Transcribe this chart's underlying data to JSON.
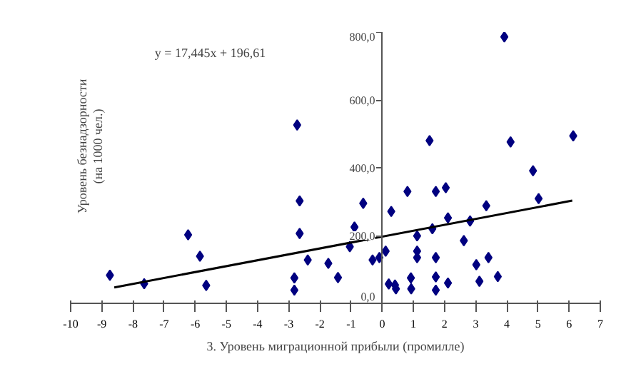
{
  "chart_data": {
    "type": "scatter",
    "xlabel": "3. Уровень миграционной прибыли (промилле)",
    "ylabel": "Уровень безнадзорности (на 1000 чел.)",
    "annotations": [
      "y = 17,445x + 196,61"
    ],
    "xlim": [
      -10,
      7
    ],
    "ylim": [
      0,
      800
    ],
    "xticks": [
      -10,
      -9,
      -8,
      -7,
      -6,
      -5,
      -4,
      -3,
      -2,
      -1,
      0,
      1,
      2,
      3,
      4,
      5,
      6,
      7
    ],
    "yticks": [
      {
        "value": 0,
        "label": "0,0"
      },
      {
        "value": 200,
        "label": "200,0"
      },
      {
        "value": 400,
        "label": "400,0"
      },
      {
        "value": 600,
        "label": "600,0"
      },
      {
        "value": 800,
        "label": "800,0"
      }
    ],
    "grid": false,
    "series": [
      {
        "marker": "diamond",
        "color": "#000080",
        "x": [
          -8.74,
          -7.64,
          -6.23,
          -5.85,
          -5.65,
          -2.82,
          -2.82,
          -2.73,
          -2.65,
          -2.65,
          -2.39,
          -1.73,
          -1.42,
          -1.04,
          -0.89,
          -0.61,
          -0.31,
          -0.09,
          0.11,
          0.21,
          0.29,
          0.41,
          0.44,
          0.81,
          0.92,
          0.93,
          1.12,
          1.12,
          1.12,
          1.52,
          1.61,
          1.72,
          1.72,
          1.72,
          1.72,
          2.04,
          2.11,
          2.11,
          2.62,
          2.82,
          3.02,
          3.12,
          3.34,
          3.41,
          3.71,
          3.92,
          4.12,
          4.84,
          5.02,
          6.13
        ],
        "values": [
          83,
          58,
          202,
          139,
          53,
          75,
          39,
          526,
          302,
          206,
          128,
          118,
          76,
          167,
          225,
          295,
          128,
          135,
          154,
          57,
          271,
          54,
          43,
          330,
          75,
          43,
          199,
          154,
          135,
          480,
          220,
          330,
          135,
          78,
          39,
          341,
          252,
          60,
          185,
          243,
          114,
          65,
          288,
          135,
          79,
          786,
          476,
          391,
          309,
          494
        ]
      },
      {
        "type": "line",
        "color": "#000000",
        "x": [
          -8.6,
          6.1
        ],
        "values": [
          47,
          303
        ]
      }
    ]
  }
}
